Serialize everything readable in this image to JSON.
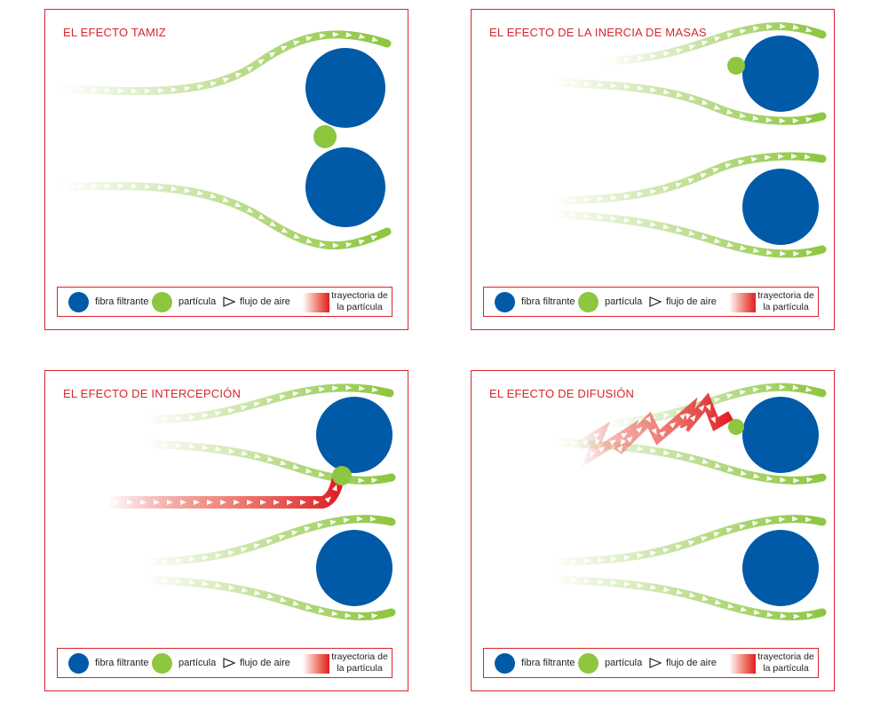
{
  "panels": [
    {
      "title": "EL EFECTO TAMIZ"
    },
    {
      "title": "EL EFECTO DE LA INERCIA DE MASAS"
    },
    {
      "title": "EL EFECTO DE INTERCEPCIÓN"
    },
    {
      "title": "EL EFECTO DE DIFUSIÓN"
    }
  ],
  "legend": {
    "fibra": "fibra filtrante",
    "particula": "partícula",
    "flujo": "flujo de aire",
    "trayectoria_1": "trayectoria de",
    "trayectoria_2": "la partícula"
  },
  "colors": {
    "fibra": "#005aa7",
    "particula": "#8dc63f",
    "flujo": "#8dc63f",
    "trayectoria": "#e01e25",
    "frame": "#d9252e"
  }
}
